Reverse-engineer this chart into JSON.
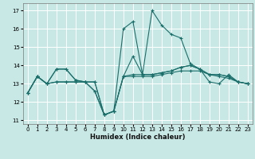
{
  "xlabel": "Humidex (Indice chaleur)",
  "bg_color": "#c8e8e5",
  "grid_color": "#ffffff",
  "line_color": "#1a6e6a",
  "xlim": [
    -0.5,
    23.5
  ],
  "ylim": [
    10.8,
    17.4
  ],
  "yticks": [
    11,
    12,
    13,
    14,
    15,
    16,
    17
  ],
  "xticks": [
    0,
    1,
    2,
    3,
    4,
    5,
    6,
    7,
    8,
    9,
    10,
    11,
    12,
    13,
    14,
    15,
    16,
    17,
    18,
    19,
    20,
    21,
    22,
    23
  ],
  "series": [
    [
      12.5,
      13.4,
      13.0,
      13.8,
      13.8,
      13.2,
      13.1,
      12.6,
      11.3,
      11.5,
      13.4,
      13.5,
      13.5,
      13.5,
      13.6,
      13.7,
      13.9,
      14.0,
      13.8,
      13.5,
      13.5,
      13.4,
      13.1,
      13.0
    ],
    [
      12.5,
      13.4,
      13.0,
      13.8,
      13.8,
      13.2,
      13.1,
      12.6,
      11.3,
      11.5,
      16.0,
      16.4,
      13.5,
      17.0,
      16.2,
      15.7,
      15.5,
      14.1,
      13.8,
      13.1,
      13.0,
      13.5,
      13.1,
      13.0
    ],
    [
      12.5,
      13.4,
      13.0,
      13.1,
      13.1,
      13.1,
      13.1,
      13.1,
      11.3,
      11.5,
      13.4,
      14.5,
      13.5,
      13.5,
      13.6,
      13.7,
      13.9,
      14.0,
      13.8,
      13.5,
      13.5,
      13.4,
      13.1,
      13.0
    ],
    [
      12.5,
      13.4,
      13.0,
      13.1,
      13.1,
      13.1,
      13.1,
      13.1,
      11.3,
      11.5,
      13.4,
      13.4,
      13.4,
      13.4,
      13.5,
      13.6,
      13.7,
      13.7,
      13.7,
      13.5,
      13.4,
      13.3,
      13.1,
      13.0
    ]
  ]
}
